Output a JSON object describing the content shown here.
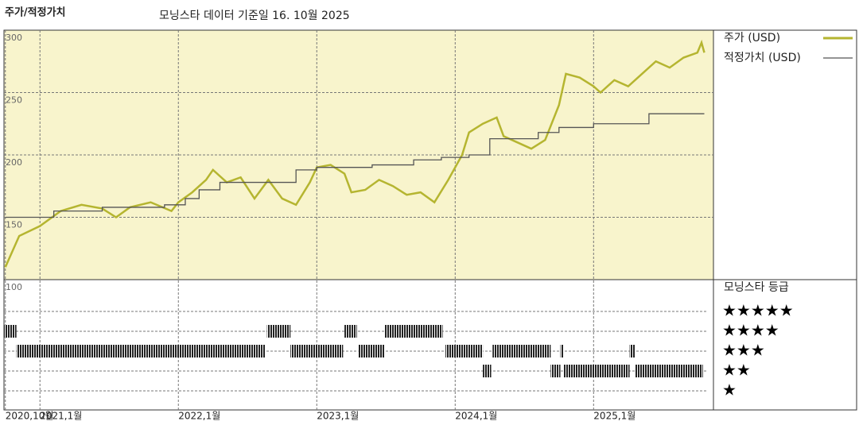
{
  "chart_data": {
    "type": "line",
    "title": "주가/적정가치",
    "subtitle": "모닝스타 데이터 기준일 16. 10월 2025",
    "xlim": [
      2020.74,
      2025.82
    ],
    "xticks": [
      {
        "value": 2020.75,
        "label": "2020,10월"
      },
      {
        "value": 2021,
        "label": "2021,1월"
      },
      {
        "value": 2022,
        "label": "2022,1월"
      },
      {
        "value": 2023,
        "label": "2023,1월"
      },
      {
        "value": 2024,
        "label": "2024,1월"
      },
      {
        "value": 2025,
        "label": "2025,1월"
      }
    ],
    "ylim": [
      100,
      300
    ],
    "yticks": [
      100,
      150,
      200,
      250,
      300
    ],
    "grid": true,
    "series": [
      {
        "name": "주가 (USD)",
        "color": "#b5b530",
        "x": [
          2020.75,
          2020.85,
          2021.0,
          2021.15,
          2021.3,
          2021.45,
          2021.55,
          2021.65,
          2021.8,
          2021.95,
          2022.0,
          2022.1,
          2022.2,
          2022.25,
          2022.35,
          2022.45,
          2022.55,
          2022.65,
          2022.75,
          2022.85,
          2022.95,
          2023.0,
          2023.1,
          2023.2,
          2023.25,
          2023.35,
          2023.45,
          2023.55,
          2023.65,
          2023.75,
          2023.85,
          2023.95,
          2024.05,
          2024.1,
          2024.2,
          2024.3,
          2024.35,
          2024.45,
          2024.55,
          2024.65,
          2024.75,
          2024.8,
          2024.9,
          2025.0,
          2025.05,
          2025.15,
          2025.25,
          2025.35,
          2025.45,
          2025.55,
          2025.65,
          2025.75,
          2025.78,
          2025.8
        ],
        "values": [
          110,
          135,
          143,
          155,
          160,
          157,
          150,
          158,
          162,
          155,
          162,
          170,
          180,
          188,
          178,
          182,
          165,
          180,
          165,
          160,
          178,
          190,
          192,
          185,
          170,
          172,
          180,
          175,
          168,
          170,
          162,
          180,
          200,
          218,
          225,
          230,
          215,
          210,
          205,
          212,
          240,
          265,
          262,
          255,
          250,
          260,
          255,
          265,
          275,
          270,
          278,
          282,
          290,
          282
        ]
      },
      {
        "name": "적정가치 (USD)",
        "color": "#555555",
        "x": [
          2020.75,
          2020.9,
          2020.9,
          2021.1,
          2021.1,
          2021.45,
          2021.45,
          2021.9,
          2021.9,
          2022.05,
          2022.05,
          2022.15,
          2022.15,
          2022.3,
          2022.3,
          2022.85,
          2022.85,
          2023.0,
          2023.0,
          2023.4,
          2023.4,
          2023.7,
          2023.7,
          2023.9,
          2023.9,
          2024.1,
          2024.1,
          2024.25,
          2024.25,
          2024.6,
          2024.6,
          2024.75,
          2024.75,
          2025.0,
          2025.0,
          2025.4,
          2025.4,
          2025.8
        ],
        "values": [
          150,
          150,
          150,
          150,
          155,
          155,
          158,
          158,
          160,
          160,
          165,
          165,
          172,
          172,
          178,
          178,
          188,
          188,
          190,
          190,
          192,
          192,
          196,
          196,
          198,
          198,
          200,
          200,
          213,
          213,
          218,
          218,
          222,
          222,
          225,
          225,
          233,
          233
        ]
      }
    ],
    "rating_title": "모닝스타 등급",
    "rating_labels": [
      "★★★★★",
      "★★★★",
      "★★★",
      "★★",
      "★"
    ],
    "ratings": {
      "x_start": [
        2020.74,
        2020.83,
        2022.64,
        2022.81,
        2023.2,
        2023.3,
        2023.49,
        2023.93,
        2024.2,
        2024.27,
        2024.69,
        2024.76,
        2024.78,
        2025.26,
        2025.3
      ],
      "x_end": [
        2020.83,
        2022.63,
        2022.81,
        2023.19,
        2023.29,
        2023.49,
        2023.91,
        2024.2,
        2024.26,
        2024.69,
        2024.76,
        2024.78,
        2025.26,
        2025.3,
        2025.79
      ],
      "stars": [
        4,
        3,
        4,
        3,
        4,
        3,
        4,
        3,
        2,
        3,
        2,
        3,
        2,
        3,
        2
      ]
    }
  }
}
